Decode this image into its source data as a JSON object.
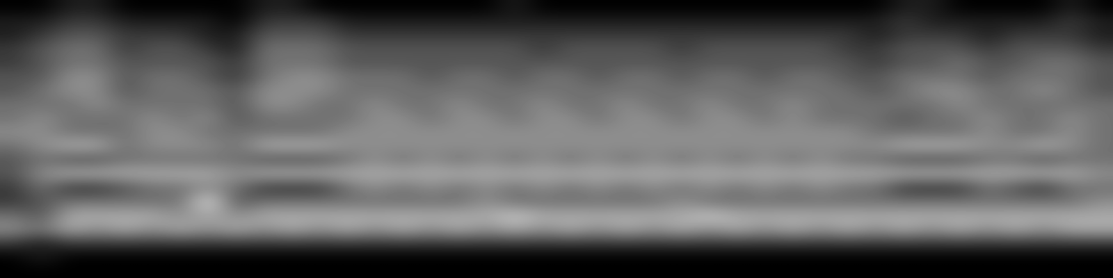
{
  "chart_data": {
    "type": "heatmap",
    "color": "gray",
    "tick_labels": false,
    "color_range": [
      0,
      9
    ],
    "cells": [
      [
        0,
        0,
        1,
        1,
        0,
        0,
        0,
        0,
        0,
        1,
        1,
        0,
        0,
        0,
        0,
        0,
        0,
        0,
        1,
        0,
        0,
        0,
        0,
        0,
        0,
        0,
        0,
        0,
        0,
        0,
        0,
        0,
        1,
        1,
        0,
        0,
        0,
        0,
        1,
        0
      ],
      [
        1,
        1,
        2,
        2,
        1,
        1,
        1,
        1,
        0,
        2,
        2,
        2,
        1,
        1,
        1,
        1,
        1,
        1,
        1,
        1,
        1,
        1,
        1,
        1,
        1,
        1,
        1,
        1,
        1,
        1,
        1,
        1,
        2,
        1,
        1,
        1,
        1,
        1,
        2,
        1
      ],
      [
        1,
        2,
        3,
        3,
        2,
        2,
        2,
        1,
        1,
        3,
        3,
        3,
        2,
        2,
        2,
        2,
        2,
        2,
        2,
        2,
        2,
        2,
        2,
        2,
        2,
        2,
        2,
        2,
        2,
        2,
        2,
        1,
        2,
        2,
        2,
        1,
        2,
        2,
        2,
        1
      ],
      [
        2,
        3,
        4,
        4,
        2,
        3,
        3,
        2,
        1,
        4,
        4,
        4,
        3,
        3,
        3,
        3,
        3,
        3,
        3,
        2,
        3,
        3,
        3,
        3,
        2,
        3,
        3,
        3,
        3,
        3,
        2,
        2,
        3,
        3,
        3,
        2,
        3,
        3,
        3,
        2
      ],
      [
        2,
        3,
        4,
        4,
        3,
        3,
        3,
        3,
        2,
        4,
        4,
        4,
        3,
        3,
        3,
        3,
        3,
        3,
        3,
        3,
        3,
        3,
        3,
        3,
        3,
        3,
        3,
        3,
        3,
        3,
        3,
        2,
        3,
        3,
        4,
        3,
        3,
        4,
        4,
        3
      ],
      [
        3,
        3,
        5,
        5,
        3,
        4,
        4,
        3,
        2,
        4,
        5,
        5,
        4,
        4,
        4,
        3,
        4,
        4,
        3,
        4,
        4,
        3,
        4,
        4,
        3,
        4,
        4,
        3,
        4,
        4,
        3,
        3,
        4,
        4,
        4,
        3,
        4,
        4,
        4,
        3
      ],
      [
        3,
        4,
        5,
        5,
        3,
        4,
        4,
        4,
        3,
        5,
        5,
        5,
        4,
        4,
        4,
        4,
        4,
        4,
        4,
        4,
        4,
        4,
        4,
        4,
        4,
        4,
        4,
        4,
        4,
        4,
        4,
        3,
        4,
        5,
        5,
        4,
        4,
        5,
        4,
        3
      ],
      [
        4,
        4,
        4,
        5,
        4,
        4,
        4,
        4,
        3,
        5,
        5,
        4,
        4,
        5,
        4,
        4,
        5,
        4,
        4,
        5,
        4,
        4,
        5,
        4,
        4,
        5,
        4,
        4,
        5,
        4,
        4,
        4,
        4,
        4,
        5,
        4,
        4,
        4,
        4,
        4
      ],
      [
        4,
        5,
        4,
        4,
        4,
        5,
        4,
        5,
        3,
        4,
        4,
        4,
        4,
        5,
        5,
        4,
        5,
        5,
        4,
        5,
        5,
        4,
        5,
        5,
        4,
        5,
        5,
        4,
        5,
        4,
        4,
        4,
        3,
        4,
        4,
        5,
        4,
        4,
        5,
        4
      ],
      [
        5,
        5,
        4,
        4,
        4,
        5,
        5,
        4,
        4,
        4,
        4,
        4,
        5,
        5,
        5,
        5,
        5,
        5,
        5,
        5,
        5,
        5,
        5,
        5,
        5,
        5,
        5,
        5,
        5,
        5,
        5,
        4,
        4,
        4,
        4,
        5,
        4,
        4,
        5,
        4
      ],
      [
        4,
        5,
        6,
        6,
        4,
        5,
        5,
        5,
        4,
        6,
        6,
        6,
        5,
        5,
        5,
        5,
        5,
        5,
        5,
        5,
        5,
        5,
        5,
        5,
        5,
        5,
        5,
        5,
        5,
        5,
        5,
        5,
        6,
        6,
        6,
        5,
        5,
        6,
        5,
        4
      ],
      [
        3,
        4,
        3,
        3,
        4,
        4,
        4,
        4,
        4,
        3,
        3,
        3,
        4,
        5,
        4,
        5,
        4,
        5,
        4,
        5,
        4,
        5,
        4,
        5,
        4,
        5,
        4,
        5,
        4,
        5,
        4,
        4,
        3,
        3,
        3,
        4,
        4,
        3,
        4,
        4
      ],
      [
        3,
        5,
        6,
        6,
        6,
        6,
        6,
        6,
        5,
        6,
        6,
        6,
        6,
        6,
        6,
        6,
        6,
        6,
        6,
        6,
        6,
        6,
        6,
        6,
        6,
        6,
        6,
        6,
        6,
        6,
        6,
        6,
        6,
        6,
        6,
        6,
        6,
        6,
        6,
        5
      ],
      [
        2,
        4,
        2,
        2,
        3,
        4,
        4,
        5,
        4,
        2,
        2,
        2,
        4,
        5,
        4,
        5,
        4,
        5,
        4,
        5,
        4,
        5,
        4,
        5,
        4,
        5,
        4,
        5,
        4,
        5,
        4,
        4,
        2,
        2,
        2,
        4,
        3,
        2,
        4,
        4
      ],
      [
        2,
        3,
        4,
        4,
        4,
        4,
        4,
        8,
        3,
        4,
        4,
        4,
        4,
        4,
        4,
        4,
        4,
        5,
        4,
        4,
        4,
        4,
        4,
        4,
        5,
        4,
        4,
        4,
        4,
        4,
        4,
        4,
        4,
        4,
        4,
        4,
        4,
        4,
        4,
        5
      ],
      [
        4,
        3,
        6,
        6,
        6,
        6,
        5,
        6,
        5,
        6,
        6,
        6,
        6,
        6,
        6,
        6,
        6,
        6,
        7,
        6,
        6,
        6,
        6,
        6,
        6,
        7,
        6,
        6,
        6,
        6,
        6,
        6,
        6,
        6,
        6,
        6,
        6,
        6,
        6,
        6
      ],
      [
        5,
        4,
        6,
        5,
        6,
        5,
        6,
        5,
        6,
        5,
        6,
        5,
        6,
        5,
        6,
        5,
        6,
        5,
        6,
        5,
        6,
        5,
        6,
        5,
        6,
        5,
        6,
        5,
        6,
        5,
        6,
        5,
        6,
        5,
        6,
        5,
        6,
        5,
        6,
        6
      ],
      [
        2,
        1,
        2,
        2,
        2,
        2,
        2,
        2,
        2,
        2,
        2,
        2,
        2,
        2,
        2,
        2,
        2,
        2,
        2,
        2,
        2,
        2,
        2,
        2,
        2,
        2,
        2,
        2,
        2,
        2,
        2,
        2,
        2,
        2,
        2,
        2,
        2,
        2,
        2,
        2
      ],
      [
        0,
        1,
        0,
        0,
        0,
        0,
        0,
        0,
        0,
        0,
        0,
        0,
        0,
        0,
        0,
        0,
        0,
        0,
        0,
        0,
        0,
        0,
        0,
        0,
        0,
        0,
        0,
        0,
        0,
        0,
        0,
        0,
        0,
        0,
        0,
        0,
        0,
        0,
        0,
        0
      ],
      [
        0,
        0,
        0,
        0,
        0,
        0,
        0,
        0,
        0,
        0,
        0,
        0,
        0,
        0,
        0,
        0,
        0,
        0,
        0,
        0,
        0,
        0,
        0,
        0,
        0,
        0,
        0,
        0,
        0,
        0,
        0,
        0,
        0,
        0,
        0,
        0,
        0,
        0,
        0,
        0
      ]
    ]
  }
}
